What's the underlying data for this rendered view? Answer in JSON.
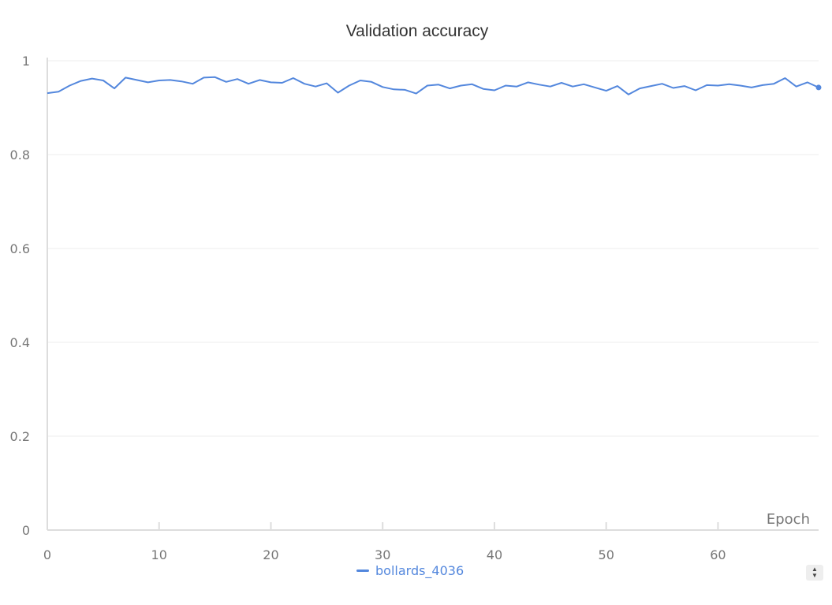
{
  "chart_data": {
    "type": "line",
    "title": "Validation accuracy",
    "xlabel": "Epoch",
    "ylabel": "",
    "xlim": [
      0,
      69
    ],
    "ylim": [
      0,
      1
    ],
    "xticks": [
      "0",
      "10",
      "20",
      "30",
      "40",
      "50",
      "60"
    ],
    "yticks": [
      "0",
      "0.2",
      "0.4",
      "0.6",
      "0.8",
      "1"
    ],
    "grid": true,
    "legend_position": "bottom",
    "series": [
      {
        "name": "bollards_4036",
        "color": "#5387dd",
        "x": [
          0,
          1,
          2,
          3,
          4,
          5,
          6,
          7,
          8,
          9,
          10,
          11,
          12,
          13,
          14,
          15,
          16,
          17,
          18,
          19,
          20,
          21,
          22,
          23,
          24,
          25,
          26,
          27,
          28,
          29,
          30,
          31,
          32,
          33,
          34,
          35,
          36,
          37,
          38,
          39,
          40,
          41,
          42,
          43,
          44,
          45,
          46,
          47,
          48,
          49,
          50,
          51,
          52,
          53,
          54,
          55,
          56,
          57,
          58,
          59,
          60,
          61,
          62,
          63,
          64,
          65,
          66,
          67,
          68,
          69
        ],
        "y": [
          0.931,
          0.934,
          0.947,
          0.957,
          0.962,
          0.958,
          0.941,
          0.964,
          0.959,
          0.954,
          0.958,
          0.959,
          0.956,
          0.951,
          0.964,
          0.965,
          0.955,
          0.961,
          0.951,
          0.959,
          0.954,
          0.953,
          0.963,
          0.951,
          0.945,
          0.952,
          0.932,
          0.947,
          0.958,
          0.955,
          0.944,
          0.939,
          0.938,
          0.93,
          0.947,
          0.949,
          0.941,
          0.947,
          0.95,
          0.94,
          0.937,
          0.947,
          0.945,
          0.954,
          0.949,
          0.945,
          0.953,
          0.945,
          0.95,
          0.943,
          0.936,
          0.946,
          0.928,
          0.941,
          0.946,
          0.951,
          0.942,
          0.946,
          0.937,
          0.948,
          0.947,
          0.95,
          0.947,
          0.943,
          0.948,
          0.951,
          0.963,
          0.945,
          0.954,
          0.943
        ]
      }
    ]
  },
  "ui": {
    "scroll_up": "▲",
    "scroll_down": "▼"
  }
}
